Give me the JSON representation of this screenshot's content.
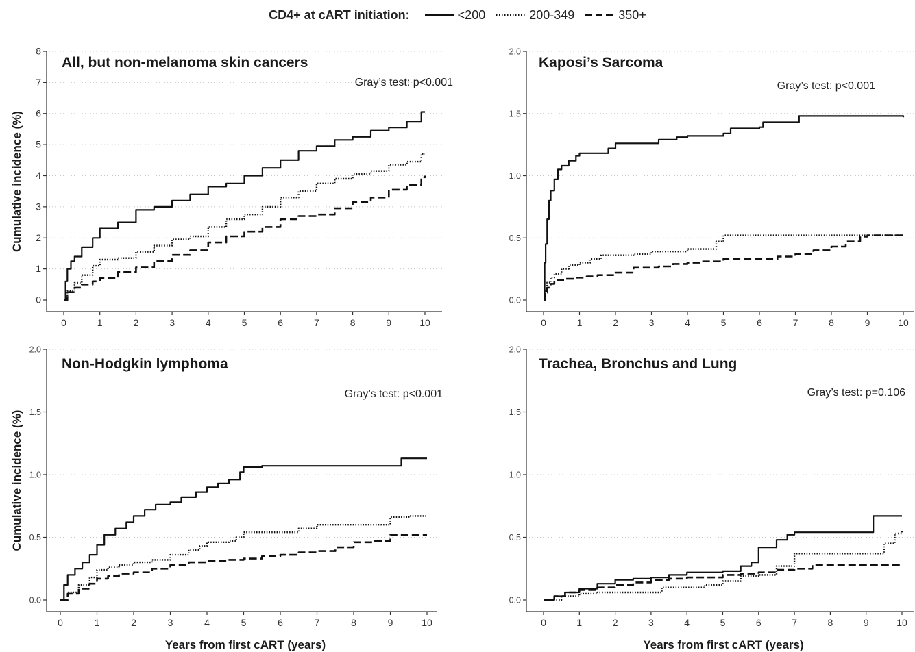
{
  "legend": {
    "title": "CD4+ at cART initiation:",
    "entries": [
      {
        "label": "<200",
        "style": "solid"
      },
      {
        "label": "200-349",
        "style": "dotted"
      },
      {
        "label": "350+",
        "style": "dashed"
      }
    ]
  },
  "chart_data": [
    {
      "type": "line",
      "title": "All, but non-melanoma skin cancers",
      "annotation": "Gray’s test: p<0.001",
      "xlabel": "",
      "ylabel": "Cumulative incidence (%)",
      "xlim": [
        0,
        10
      ],
      "ylim": [
        0,
        8
      ],
      "xticks": [
        0,
        1,
        2,
        3,
        4,
        5,
        6,
        7,
        8,
        9,
        10
      ],
      "yticks": [
        0,
        1,
        2,
        3,
        4,
        5,
        6,
        7,
        8
      ],
      "ytick_labels": [
        "0",
        "1",
        "2",
        "3",
        "4",
        "5",
        "6",
        "7",
        "8"
      ],
      "grid": "horizontal dotted",
      "series": [
        {
          "name": "<200",
          "style": "solid",
          "x": [
            0,
            0.05,
            0.1,
            0.2,
            0.3,
            0.5,
            0.8,
            1.0,
            1.5,
            2.0,
            2.5,
            3.0,
            3.5,
            4.0,
            4.5,
            5.0,
            5.5,
            6.0,
            6.5,
            7.0,
            7.5,
            8.0,
            8.5,
            9.0,
            9.5,
            9.9,
            10.0
          ],
          "y": [
            0,
            0.6,
            1.0,
            1.25,
            1.4,
            1.7,
            2.0,
            2.3,
            2.5,
            2.9,
            3.0,
            3.2,
            3.4,
            3.65,
            3.75,
            4.0,
            4.25,
            4.5,
            4.8,
            4.95,
            5.15,
            5.25,
            5.45,
            5.55,
            5.75,
            6.05,
            6.05
          ]
        },
        {
          "name": "200-349",
          "style": "dotted",
          "x": [
            0,
            0.1,
            0.3,
            0.5,
            0.8,
            1.0,
            1.5,
            2.0,
            2.5,
            3.0,
            3.5,
            4.0,
            4.5,
            5.0,
            5.5,
            6.0,
            6.5,
            7.0,
            7.5,
            8.0,
            8.5,
            9.0,
            9.5,
            9.9,
            10.0
          ],
          "y": [
            0,
            0.3,
            0.55,
            0.8,
            1.1,
            1.3,
            1.35,
            1.55,
            1.75,
            1.95,
            2.05,
            2.35,
            2.6,
            2.75,
            3.0,
            3.3,
            3.5,
            3.75,
            3.9,
            4.05,
            4.15,
            4.35,
            4.45,
            4.7,
            4.7
          ]
        },
        {
          "name": "350+",
          "style": "dashed",
          "x": [
            0,
            0.1,
            0.3,
            0.5,
            0.8,
            1.0,
            1.5,
            2.0,
            2.5,
            3.0,
            3.5,
            4.0,
            4.5,
            5.0,
            5.5,
            6.0,
            6.5,
            7.0,
            7.5,
            8.0,
            8.5,
            9.0,
            9.5,
            9.9,
            10.0
          ],
          "y": [
            0,
            0.25,
            0.4,
            0.5,
            0.6,
            0.7,
            0.9,
            1.05,
            1.25,
            1.45,
            1.6,
            1.85,
            2.05,
            2.2,
            2.35,
            2.6,
            2.7,
            2.75,
            2.95,
            3.15,
            3.3,
            3.55,
            3.7,
            3.95,
            4.0
          ]
        }
      ]
    },
    {
      "type": "line",
      "title": "Kaposi’s Sarcoma",
      "annotation": "Gray’s test: p<0.001",
      "xlabel": "",
      "ylabel": "",
      "xlim": [
        0,
        10
      ],
      "ylim": [
        0,
        2
      ],
      "xticks": [
        0,
        1,
        2,
        3,
        4,
        5,
        6,
        7,
        8,
        9,
        10
      ],
      "yticks": [
        0,
        0.5,
        1,
        1.5,
        2
      ],
      "ytick_labels": [
        "0.0",
        "0.5",
        "1.0",
        "1.5",
        "2.0"
      ],
      "grid": "horizontal dotted",
      "series": [
        {
          "name": "<200",
          "style": "solid",
          "x": [
            0,
            0.03,
            0.06,
            0.1,
            0.15,
            0.2,
            0.3,
            0.4,
            0.5,
            0.7,
            0.9,
            1.0,
            1.6,
            1.8,
            2.0,
            3.0,
            3.2,
            3.7,
            4.0,
            5.0,
            5.2,
            6.0,
            6.1,
            7.0,
            7.1,
            8.0,
            9.0,
            10.0
          ],
          "y": [
            0,
            0.3,
            0.45,
            0.65,
            0.8,
            0.88,
            0.97,
            1.05,
            1.08,
            1.12,
            1.16,
            1.18,
            1.18,
            1.22,
            1.26,
            1.26,
            1.29,
            1.31,
            1.32,
            1.34,
            1.38,
            1.39,
            1.43,
            1.43,
            1.48,
            1.48,
            1.48,
            1.47
          ]
        },
        {
          "name": "200-349",
          "style": "dotted",
          "x": [
            0,
            0.05,
            0.1,
            0.2,
            0.3,
            0.5,
            0.7,
            1.0,
            1.3,
            1.6,
            2.0,
            2.5,
            3.0,
            4.0,
            4.8,
            5.0,
            6.0,
            7.0,
            8.0,
            9.0,
            10.0
          ],
          "y": [
            0,
            0.08,
            0.14,
            0.18,
            0.21,
            0.25,
            0.28,
            0.3,
            0.33,
            0.36,
            0.36,
            0.37,
            0.39,
            0.41,
            0.47,
            0.52,
            0.52,
            0.52,
            0.52,
            0.52,
            0.52
          ]
        },
        {
          "name": "350+",
          "style": "dashed",
          "x": [
            0,
            0.05,
            0.1,
            0.2,
            0.3,
            0.6,
            0.9,
            1.2,
            1.5,
            2.0,
            2.5,
            3.2,
            3.6,
            4.0,
            4.4,
            5.0,
            5.6,
            6.5,
            7.0,
            7.5,
            8.0,
            8.4,
            8.8,
            9.0,
            10.0
          ],
          "y": [
            0,
            0.06,
            0.1,
            0.13,
            0.16,
            0.17,
            0.18,
            0.19,
            0.2,
            0.22,
            0.26,
            0.27,
            0.29,
            0.3,
            0.31,
            0.33,
            0.33,
            0.35,
            0.37,
            0.4,
            0.43,
            0.47,
            0.51,
            0.52,
            0.52
          ]
        }
      ]
    },
    {
      "type": "line",
      "title": "Non-Hodgkin lymphoma",
      "annotation": "Gray’s test: p<0.001",
      "xlabel": "Years from first cART (years)",
      "ylabel": "Cumulative incidence (%)",
      "xlim": [
        0,
        10
      ],
      "ylim": [
        0,
        2
      ],
      "xticks": [
        0,
        1,
        2,
        3,
        4,
        5,
        6,
        7,
        8,
        9,
        10
      ],
      "yticks": [
        0,
        0.5,
        1,
        1.5,
        2
      ],
      "ytick_labels": [
        "0.0",
        "0.5",
        "1.0",
        "1.5",
        "2.0"
      ],
      "grid": "horizontal dotted",
      "series": [
        {
          "name": "<200",
          "style": "solid",
          "x": [
            0,
            0.1,
            0.2,
            0.4,
            0.6,
            0.8,
            1.0,
            1.2,
            1.5,
            1.8,
            2.0,
            2.3,
            2.6,
            3.0,
            3.3,
            3.7,
            4.0,
            4.3,
            4.6,
            4.9,
            5.0,
            5.5,
            6.0,
            7.0,
            8.0,
            9.0,
            9.3,
            10.0
          ],
          "y": [
            0,
            0.12,
            0.2,
            0.25,
            0.3,
            0.36,
            0.44,
            0.52,
            0.57,
            0.62,
            0.67,
            0.72,
            0.76,
            0.78,
            0.82,
            0.86,
            0.9,
            0.93,
            0.96,
            1.02,
            1.06,
            1.07,
            1.07,
            1.07,
            1.07,
            1.07,
            1.13,
            1.13
          ]
        },
        {
          "name": "200-349",
          "style": "dotted",
          "x": [
            0,
            0.2,
            0.5,
            0.8,
            1.0,
            1.3,
            1.6,
            2.0,
            2.5,
            3.0,
            3.5,
            3.8,
            4.0,
            4.6,
            4.8,
            5.0,
            6.0,
            6.5,
            7.0,
            8.0,
            9.0,
            9.5,
            10.0
          ],
          "y": [
            0,
            0.06,
            0.12,
            0.18,
            0.24,
            0.26,
            0.28,
            0.3,
            0.32,
            0.36,
            0.4,
            0.43,
            0.46,
            0.47,
            0.5,
            0.54,
            0.54,
            0.57,
            0.6,
            0.6,
            0.66,
            0.67,
            0.67
          ]
        },
        {
          "name": "350+",
          "style": "dashed",
          "x": [
            0,
            0.2,
            0.5,
            0.8,
            1.0,
            1.3,
            1.6,
            2.0,
            2.5,
            3.0,
            3.5,
            4.0,
            4.5,
            5.0,
            5.5,
            6.0,
            6.5,
            7.0,
            7.5,
            8.0,
            8.5,
            9.0,
            10.0
          ],
          "y": [
            0,
            0.05,
            0.09,
            0.13,
            0.17,
            0.19,
            0.21,
            0.22,
            0.25,
            0.28,
            0.3,
            0.31,
            0.32,
            0.33,
            0.35,
            0.36,
            0.38,
            0.39,
            0.42,
            0.46,
            0.47,
            0.52,
            0.52
          ]
        }
      ]
    },
    {
      "type": "line",
      "title": "Trachea, Bronchus and Lung",
      "annotation": "Gray’s test: p=0.106",
      "xlabel": "Years from first cART (years)",
      "ylabel": "",
      "xlim": [
        0,
        10
      ],
      "ylim": [
        0,
        2
      ],
      "xticks": [
        0,
        1,
        2,
        3,
        4,
        5,
        6,
        7,
        8,
        9,
        10
      ],
      "yticks": [
        0,
        0.5,
        1,
        1.5,
        2
      ],
      "ytick_labels": [
        "0.0",
        "0.5",
        "1.0",
        "1.5",
        "2.0"
      ],
      "grid": "horizontal dotted",
      "series": [
        {
          "name": "<200",
          "style": "solid",
          "x": [
            0,
            0.3,
            0.6,
            1.0,
            1.5,
            2.0,
            2.5,
            3.0,
            3.5,
            4.0,
            4.5,
            5.0,
            5.5,
            5.8,
            6.0,
            6.5,
            6.8,
            7.0,
            8.0,
            9.0,
            9.2,
            10.0
          ],
          "y": [
            0,
            0.03,
            0.06,
            0.09,
            0.13,
            0.16,
            0.17,
            0.18,
            0.2,
            0.22,
            0.22,
            0.23,
            0.27,
            0.3,
            0.42,
            0.48,
            0.52,
            0.54,
            0.54,
            0.54,
            0.67,
            0.67
          ]
        },
        {
          "name": "200-349",
          "style": "dotted",
          "x": [
            0,
            0.5,
            1.0,
            1.5,
            2.0,
            2.5,
            3.0,
            3.3,
            4.0,
            4.5,
            5.0,
            5.5,
            6.0,
            6.5,
            7.0,
            8.0,
            9.0,
            9.5,
            9.8,
            10.0
          ],
          "y": [
            0,
            0.03,
            0.05,
            0.06,
            0.06,
            0.06,
            0.06,
            0.1,
            0.1,
            0.12,
            0.15,
            0.19,
            0.2,
            0.27,
            0.37,
            0.37,
            0.37,
            0.45,
            0.53,
            0.55
          ]
        },
        {
          "name": "350+",
          "style": "dashed",
          "x": [
            0,
            0.3,
            0.6,
            1.0,
            1.5,
            2.0,
            2.5,
            3.0,
            3.5,
            4.0,
            5.0,
            5.5,
            6.0,
            6.5,
            7.0,
            7.5,
            8.0,
            9.0,
            10.0
          ],
          "y": [
            0,
            0.03,
            0.06,
            0.08,
            0.1,
            0.12,
            0.14,
            0.16,
            0.17,
            0.18,
            0.2,
            0.21,
            0.22,
            0.24,
            0.25,
            0.28,
            0.28,
            0.28,
            0.28
          ]
        }
      ]
    }
  ]
}
